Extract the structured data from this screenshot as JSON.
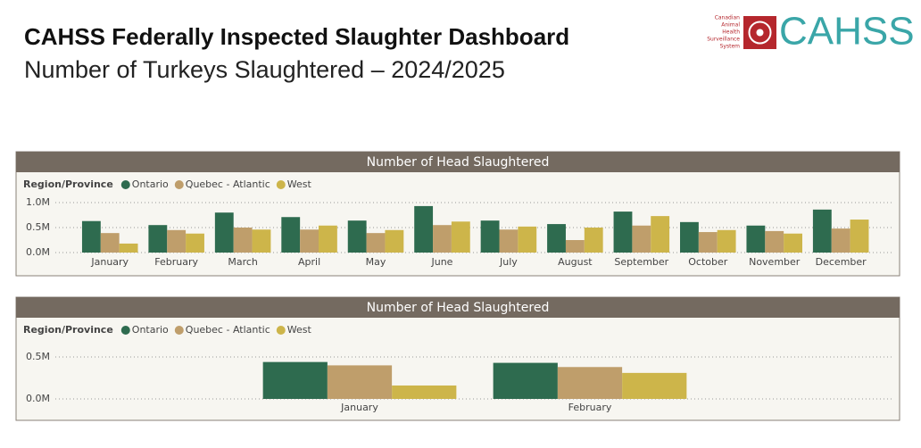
{
  "header": {
    "title": "CAHSS Federally Inspected Slaughter Dashboard",
    "subtitle": "Number of Turkeys Slaughtered – 2024/2025"
  },
  "logo": {
    "small_text": [
      "Canadian",
      "Animal",
      "Health",
      "Surveillance",
      "System"
    ],
    "name": "CAHSS"
  },
  "chart_data": [
    {
      "type": "bar",
      "title": "Number of Head Slaughtered",
      "legend_title": "Region/Province",
      "categories": [
        "January",
        "February",
        "March",
        "April",
        "May",
        "June",
        "July",
        "August",
        "September",
        "October",
        "November",
        "December"
      ],
      "series": [
        {
          "name": "Ontario",
          "color": "#2e6b4f",
          "values": [
            630000,
            550000,
            800000,
            710000,
            640000,
            930000,
            640000,
            570000,
            820000,
            610000,
            540000,
            860000
          ]
        },
        {
          "name": "Quebec - Atlantic",
          "color": "#bf9e6b",
          "values": [
            390000,
            450000,
            500000,
            460000,
            390000,
            550000,
            460000,
            250000,
            540000,
            410000,
            430000,
            480000
          ]
        },
        {
          "name": "West",
          "color": "#cdb54a",
          "values": [
            180000,
            380000,
            460000,
            540000,
            450000,
            620000,
            520000,
            500000,
            730000,
            450000,
            380000,
            660000
          ]
        }
      ],
      "ylim": [
        0,
        1100000
      ],
      "yticks": [
        {
          "value": 0,
          "label": "0.0M"
        },
        {
          "value": 500000,
          "label": "0.5M"
        },
        {
          "value": 1000000,
          "label": "1.0M"
        }
      ],
      "grid": true
    },
    {
      "type": "bar",
      "title": "Number of Head Slaughtered",
      "legend_title": "Region/Province",
      "categories": [
        "January",
        "February"
      ],
      "series": [
        {
          "name": "Ontario",
          "color": "#2e6b4f",
          "values": [
            440000,
            430000
          ]
        },
        {
          "name": "Quebec - Atlantic",
          "color": "#bf9e6b",
          "values": [
            400000,
            380000
          ]
        },
        {
          "name": "West",
          "color": "#cdb54a",
          "values": [
            160000,
            310000
          ]
        }
      ],
      "ylim": [
        0,
        600000
      ],
      "yticks": [
        {
          "value": 0,
          "label": "0.0M"
        },
        {
          "value": 500000,
          "label": "0.5M"
        }
      ],
      "grid": true
    }
  ]
}
